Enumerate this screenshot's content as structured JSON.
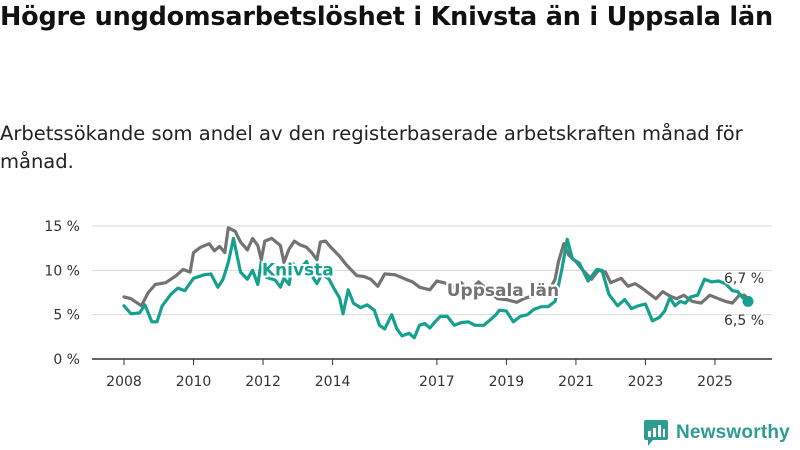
{
  "title": "Högre ungdomsarbetslöshet i Knivsta än i Uppsala län",
  "subtitle": "Arbetssökande som andel av den registerbaserade arbetskraften månad för månad.",
  "brand": "Newsworthy",
  "colors": {
    "knivsta": "#16a08e",
    "uppsala": "#737373",
    "axis": "#333333",
    "grid": "#d9d9d9",
    "brand": "#2f9c91"
  },
  "chart_data": {
    "type": "line",
    "title": "Högre ungdomsarbetslöshet i Knivsta än i Uppsala län",
    "xlabel": "",
    "ylabel": "",
    "xlim": [
      2008,
      2026.5
    ],
    "ylim": [
      0,
      15
    ],
    "x_ticks": [
      2008,
      2010,
      2012,
      2014,
      2017,
      2019,
      2021,
      2023,
      2025
    ],
    "y_ticks": [
      0,
      5,
      10,
      15
    ],
    "y_tick_labels": [
      "0 %",
      "5 %",
      "10 %",
      "15 %"
    ],
    "grid": "horizontal",
    "series": [
      {
        "name": "Uppsala län",
        "label_at": [
          2018.9,
          7.1
        ],
        "end_label": "6,7 %",
        "points": [
          [
            2008.0,
            7.0
          ],
          [
            2008.2,
            6.8
          ],
          [
            2008.5,
            6.0
          ],
          [
            2008.7,
            7.5
          ],
          [
            2008.9,
            8.4
          ],
          [
            2009.2,
            8.6
          ],
          [
            2009.5,
            9.4
          ],
          [
            2009.7,
            10.1
          ],
          [
            2009.9,
            9.8
          ],
          [
            2010.0,
            12.0
          ],
          [
            2010.2,
            12.6
          ],
          [
            2010.45,
            13.0
          ],
          [
            2010.6,
            12.2
          ],
          [
            2010.75,
            12.7
          ],
          [
            2010.9,
            12.0
          ],
          [
            2011.0,
            14.8
          ],
          [
            2011.2,
            14.4
          ],
          [
            2011.35,
            13.2
          ],
          [
            2011.55,
            12.3
          ],
          [
            2011.7,
            13.6
          ],
          [
            2011.85,
            12.8
          ],
          [
            2011.95,
            11.2
          ],
          [
            2012.05,
            13.3
          ],
          [
            2012.25,
            13.6
          ],
          [
            2012.5,
            12.8
          ],
          [
            2012.6,
            10.9
          ],
          [
            2012.75,
            12.4
          ],
          [
            2012.9,
            13.3
          ],
          [
            2013.05,
            12.9
          ],
          [
            2013.25,
            12.6
          ],
          [
            2013.4,
            12.0
          ],
          [
            2013.55,
            11.2
          ],
          [
            2013.65,
            13.2
          ],
          [
            2013.8,
            13.3
          ],
          [
            2013.95,
            12.6
          ],
          [
            2014.2,
            11.6
          ],
          [
            2014.4,
            10.6
          ],
          [
            2014.7,
            9.4
          ],
          [
            2014.9,
            9.3
          ],
          [
            2015.1,
            9.0
          ],
          [
            2015.3,
            8.2
          ],
          [
            2015.5,
            9.6
          ],
          [
            2015.8,
            9.5
          ],
          [
            2016.1,
            9.0
          ],
          [
            2016.3,
            8.7
          ],
          [
            2016.5,
            8.1
          ],
          [
            2016.8,
            7.8
          ],
          [
            2017.0,
            8.8
          ],
          [
            2017.3,
            8.5
          ],
          [
            2017.5,
            8.1
          ],
          [
            2017.7,
            8.6
          ],
          [
            2017.9,
            7.6
          ],
          [
            2018.2,
            8.7
          ],
          [
            2018.4,
            8.0
          ],
          [
            2018.55,
            7.4
          ],
          [
            2018.75,
            6.8
          ],
          [
            2019.0,
            6.7
          ],
          [
            2019.3,
            6.4
          ],
          [
            2019.5,
            6.8
          ],
          [
            2019.9,
            7.3
          ],
          [
            2020.2,
            7.5
          ],
          [
            2020.4,
            9.0
          ],
          [
            2020.5,
            11.0
          ],
          [
            2020.65,
            13.0
          ],
          [
            2020.8,
            11.7
          ],
          [
            2021.0,
            11.0
          ],
          [
            2021.2,
            10.0
          ],
          [
            2021.45,
            9.0
          ],
          [
            2021.65,
            10.0
          ],
          [
            2021.85,
            9.8
          ],
          [
            2022.0,
            8.6
          ],
          [
            2022.3,
            9.1
          ],
          [
            2022.5,
            8.2
          ],
          [
            2022.7,
            8.5
          ],
          [
            2022.9,
            8.0
          ],
          [
            2023.1,
            7.4
          ],
          [
            2023.3,
            6.8
          ],
          [
            2023.5,
            7.6
          ],
          [
            2023.7,
            7.1
          ],
          [
            2023.9,
            6.8
          ],
          [
            2024.1,
            7.2
          ],
          [
            2024.35,
            6.5
          ],
          [
            2024.6,
            6.3
          ],
          [
            2024.85,
            7.2
          ],
          [
            2025.1,
            6.8
          ],
          [
            2025.3,
            6.5
          ],
          [
            2025.5,
            6.3
          ],
          [
            2025.7,
            7.2
          ],
          [
            2025.85,
            7.2
          ],
          [
            2025.95,
            6.7
          ]
        ]
      },
      {
        "name": "Knivsta",
        "label_at": [
          2013.0,
          9.4
        ],
        "end_label": "6,5 %",
        "points": [
          [
            2008.0,
            6.0
          ],
          [
            2008.2,
            5.1
          ],
          [
            2008.45,
            5.2
          ],
          [
            2008.6,
            6.1
          ],
          [
            2008.8,
            4.2
          ],
          [
            2008.95,
            4.2
          ],
          [
            2009.1,
            6.0
          ],
          [
            2009.35,
            7.3
          ],
          [
            2009.55,
            8.0
          ],
          [
            2009.75,
            7.7
          ],
          [
            2010.0,
            9.1
          ],
          [
            2010.3,
            9.5
          ],
          [
            2010.5,
            9.6
          ],
          [
            2010.7,
            8.1
          ],
          [
            2010.85,
            9.0
          ],
          [
            2011.0,
            10.9
          ],
          [
            2011.15,
            13.6
          ],
          [
            2011.35,
            9.8
          ],
          [
            2011.55,
            9.0
          ],
          [
            2011.7,
            10.0
          ],
          [
            2011.85,
            8.4
          ],
          [
            2011.95,
            11.0
          ],
          [
            2012.1,
            9.2
          ],
          [
            2012.35,
            8.9
          ],
          [
            2012.5,
            8.1
          ],
          [
            2012.6,
            9.1
          ],
          [
            2012.75,
            8.4
          ],
          [
            2012.85,
            10.9
          ],
          [
            2012.95,
            10.0
          ],
          [
            2013.05,
            10.1
          ],
          [
            2013.25,
            11.0
          ],
          [
            2013.45,
            9.1
          ],
          [
            2013.55,
            8.5
          ],
          [
            2013.7,
            9.6
          ],
          [
            2013.9,
            9.0
          ],
          [
            2014.05,
            7.9
          ],
          [
            2014.2,
            6.9
          ],
          [
            2014.3,
            5.1
          ],
          [
            2014.45,
            7.8
          ],
          [
            2014.6,
            6.3
          ],
          [
            2014.8,
            5.8
          ],
          [
            2015.0,
            6.1
          ],
          [
            2015.2,
            5.5
          ],
          [
            2015.35,
            3.8
          ],
          [
            2015.5,
            3.4
          ],
          [
            2015.6,
            4.2
          ],
          [
            2015.7,
            5.0
          ],
          [
            2015.85,
            3.4
          ],
          [
            2016.0,
            2.6
          ],
          [
            2016.2,
            2.9
          ],
          [
            2016.35,
            2.4
          ],
          [
            2016.5,
            3.8
          ],
          [
            2016.65,
            4.0
          ],
          [
            2016.8,
            3.5
          ],
          [
            2016.95,
            4.2
          ],
          [
            2017.1,
            4.8
          ],
          [
            2017.3,
            4.8
          ],
          [
            2017.5,
            3.8
          ],
          [
            2017.7,
            4.1
          ],
          [
            2017.9,
            4.2
          ],
          [
            2018.1,
            3.8
          ],
          [
            2018.35,
            3.8
          ],
          [
            2018.5,
            4.3
          ],
          [
            2018.7,
            5.0
          ],
          [
            2018.8,
            5.5
          ],
          [
            2019.0,
            5.4
          ],
          [
            2019.2,
            4.2
          ],
          [
            2019.4,
            4.8
          ],
          [
            2019.6,
            5.0
          ],
          [
            2019.8,
            5.6
          ],
          [
            2020.0,
            5.9
          ],
          [
            2020.2,
            5.9
          ],
          [
            2020.4,
            6.5
          ],
          [
            2020.6,
            10.2
          ],
          [
            2020.75,
            13.5
          ],
          [
            2020.9,
            11.3
          ],
          [
            2021.1,
            10.8
          ],
          [
            2021.35,
            8.8
          ],
          [
            2021.6,
            10.1
          ],
          [
            2021.75,
            10.0
          ],
          [
            2021.95,
            7.3
          ],
          [
            2022.2,
            6.0
          ],
          [
            2022.4,
            6.7
          ],
          [
            2022.6,
            5.7
          ],
          [
            2022.8,
            6.0
          ],
          [
            2023.0,
            6.2
          ],
          [
            2023.2,
            4.3
          ],
          [
            2023.4,
            4.7
          ],
          [
            2023.55,
            5.4
          ],
          [
            2023.7,
            6.9
          ],
          [
            2023.85,
            6.0
          ],
          [
            2024.0,
            6.5
          ],
          [
            2024.15,
            6.3
          ],
          [
            2024.3,
            7.0
          ],
          [
            2024.5,
            7.2
          ],
          [
            2024.7,
            9.0
          ],
          [
            2024.9,
            8.7
          ],
          [
            2025.1,
            8.8
          ],
          [
            2025.3,
            8.5
          ],
          [
            2025.5,
            7.7
          ],
          [
            2025.65,
            7.6
          ],
          [
            2025.8,
            6.9
          ],
          [
            2025.95,
            6.5
          ]
        ]
      }
    ]
  }
}
